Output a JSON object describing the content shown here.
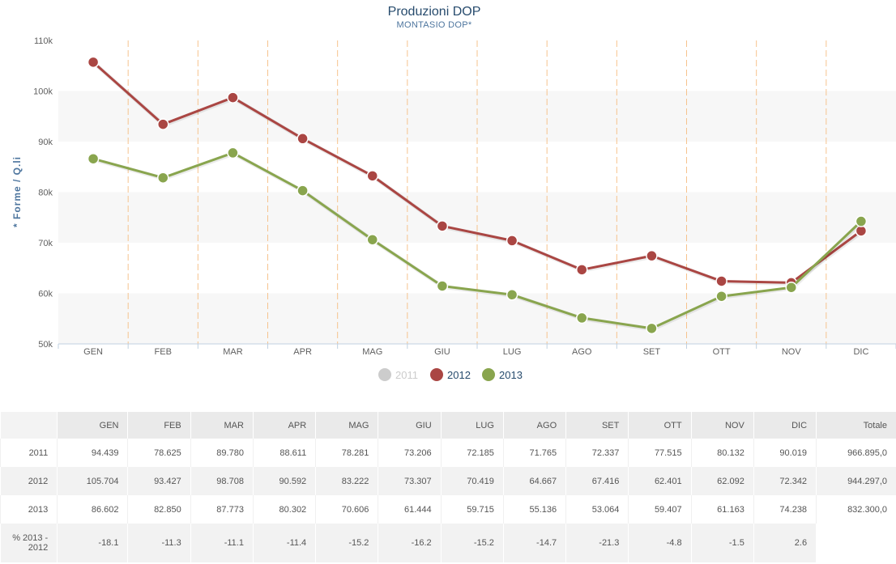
{
  "chart_data": {
    "type": "line",
    "title": "Produzioni DOP",
    "subtitle": "MONTASIO DOP*",
    "ylabel": "* Forme / Q.li",
    "ylim": [
      50000,
      110000
    ],
    "yticks": [
      50000,
      60000,
      70000,
      80000,
      90000,
      100000,
      110000
    ],
    "ytick_labels": [
      "50k",
      "60k",
      "70k",
      "80k",
      "90k",
      "100k",
      "110k"
    ],
    "categories": [
      "GEN",
      "FEB",
      "MAR",
      "APR",
      "MAG",
      "GIU",
      "LUG",
      "AGO",
      "SET",
      "OTT",
      "NOV",
      "DIC"
    ],
    "grid": "alternating horizontal bands, dashed vertical separators",
    "legend_placement": "bottom-center",
    "series": [
      {
        "name": "2011",
        "visible": false,
        "color": "#cccccc",
        "values": [
          94439,
          78625,
          89780,
          88611,
          78281,
          73206,
          72185,
          71765,
          72337,
          77515,
          80132,
          90019
        ]
      },
      {
        "name": "2012",
        "visible": true,
        "color": "#aa4643",
        "values": [
          105704,
          93427,
          98708,
          90592,
          83222,
          73307,
          70419,
          64667,
          67416,
          62401,
          62092,
          72342
        ]
      },
      {
        "name": "2013",
        "visible": true,
        "color": "#89a54e",
        "values": [
          86602,
          82850,
          87773,
          80302,
          70606,
          61444,
          59715,
          55136,
          53064,
          59407,
          61163,
          74238
        ]
      }
    ]
  },
  "table": {
    "headers": [
      "",
      "GEN",
      "FEB",
      "MAR",
      "APR",
      "MAG",
      "GIU",
      "LUG",
      "AGO",
      "SET",
      "OTT",
      "NOV",
      "DIC",
      "Totale"
    ],
    "rows": [
      [
        "2011",
        "94.439",
        "78.625",
        "89.780",
        "88.611",
        "78.281",
        "73.206",
        "72.185",
        "71.765",
        "72.337",
        "77.515",
        "80.132",
        "90.019",
        "966.895,0"
      ],
      [
        "2012",
        "105.704",
        "93.427",
        "98.708",
        "90.592",
        "83.222",
        "73.307",
        "70.419",
        "64.667",
        "67.416",
        "62.401",
        "62.092",
        "72.342",
        "944.297,0"
      ],
      [
        "2013",
        "86.602",
        "82.850",
        "87.773",
        "80.302",
        "70.606",
        "61.444",
        "59.715",
        "55.136",
        "53.064",
        "59.407",
        "61.163",
        "74.238",
        "832.300,0"
      ],
      [
        "% 2013 - 2012",
        "-18.1",
        "-11.3",
        "-11.1",
        "-11.4",
        "-15.2",
        "-16.2",
        "-15.2",
        "-14.7",
        "-21.3",
        "-4.8",
        "-1.5",
        "2.6",
        ""
      ]
    ]
  }
}
